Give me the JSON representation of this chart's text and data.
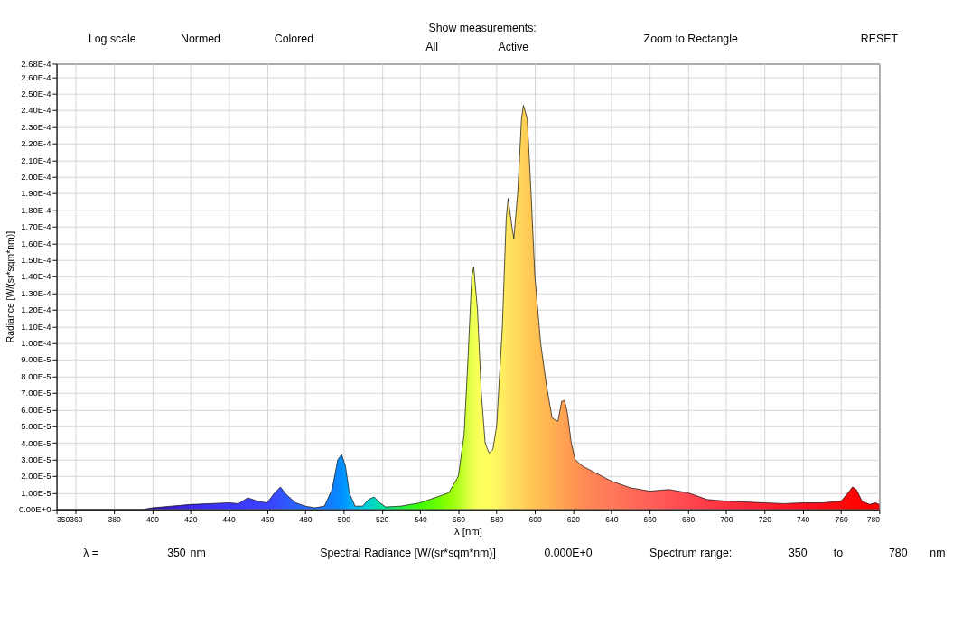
{
  "chart_data": {
    "type": "area",
    "xlabel": "λ [nm]",
    "ylabel": "Radiance [W/(sr*sqm*nm)]",
    "xlim": [
      350,
      780
    ],
    "xticks": [
      350,
      360,
      380,
      400,
      420,
      440,
      460,
      480,
      500,
      520,
      540,
      560,
      580,
      600,
      620,
      640,
      660,
      680,
      700,
      720,
      740,
      760,
      780
    ],
    "ylim": [
      0,
      0.000268
    ],
    "yticks": [
      {
        "value": 0,
        "label": "0.00E+0"
      },
      {
        "value": 1e-05,
        "label": "1.00E-5"
      },
      {
        "value": 2e-05,
        "label": "2.00E-5"
      },
      {
        "value": 3e-05,
        "label": "3.00E-5"
      },
      {
        "value": 4e-05,
        "label": "4.00E-5"
      },
      {
        "value": 5e-05,
        "label": "5.00E-5"
      },
      {
        "value": 6e-05,
        "label": "6.00E-5"
      },
      {
        "value": 7e-05,
        "label": "7.00E-5"
      },
      {
        "value": 8e-05,
        "label": "8.00E-5"
      },
      {
        "value": 9e-05,
        "label": "9.00E-5"
      },
      {
        "value": 0.0001,
        "label": "1.00E-4"
      },
      {
        "value": 0.00011,
        "label": "1.10E-4"
      },
      {
        "value": 0.00012,
        "label": "1.20E-4"
      },
      {
        "value": 0.00013,
        "label": "1.30E-4"
      },
      {
        "value": 0.00014,
        "label": "1.40E-4"
      },
      {
        "value": 0.00015,
        "label": "1.50E-4"
      },
      {
        "value": 0.00016,
        "label": "1.60E-4"
      },
      {
        "value": 0.00017,
        "label": "1.70E-4"
      },
      {
        "value": 0.00018,
        "label": "1.80E-4"
      },
      {
        "value": 0.00019,
        "label": "1.90E-4"
      },
      {
        "value": 0.0002,
        "label": "2.00E-4"
      },
      {
        "value": 0.00021,
        "label": "2.10E-4"
      },
      {
        "value": 0.00022,
        "label": "2.20E-4"
      },
      {
        "value": 0.00023,
        "label": "2.30E-4"
      },
      {
        "value": 0.00024,
        "label": "2.40E-4"
      },
      {
        "value": 0.00025,
        "label": "2.50E-4"
      },
      {
        "value": 0.00026,
        "label": "2.60E-4"
      },
      {
        "value": 0.000268,
        "label": "2.68E-4"
      }
    ],
    "grid": true,
    "series": [
      {
        "x": [
          350,
          395,
          400,
          410,
          420,
          430,
          440,
          445,
          450,
          455,
          460,
          464,
          467,
          470,
          475,
          480,
          485,
          490,
          494,
          497,
          499,
          501,
          503,
          506,
          510,
          513,
          516,
          519,
          522,
          530,
          540,
          550,
          555,
          560,
          563,
          565,
          567,
          568,
          570,
          572,
          574,
          576,
          578,
          580,
          583,
          585,
          586,
          588,
          589,
          591,
          593,
          594,
          596,
          598,
          600,
          603,
          606,
          609,
          612,
          614,
          615.5,
          617,
          619,
          621,
          625,
          630,
          640,
          650,
          660,
          670,
          680,
          690,
          700,
          710,
          720,
          730,
          740,
          750,
          760,
          763,
          766,
          768,
          771,
          775,
          778,
          780
        ],
        "values": [
          0,
          0,
          1e-06,
          2e-06,
          3e-06,
          3.5e-06,
          4e-06,
          3.5e-06,
          7e-06,
          5e-06,
          4e-06,
          1e-05,
          1.35e-05,
          9e-06,
          4e-06,
          2e-06,
          1e-06,
          2e-06,
          1.2e-05,
          3e-05,
          3.3e-05,
          2.6e-05,
          1e-05,
          2e-06,
          2e-06,
          6e-06,
          7.5e-06,
          4e-06,
          1.5e-06,
          2e-06,
          4e-06,
          8e-06,
          1e-05,
          2e-05,
          4.5e-05,
          9e-05,
          0.00014,
          0.000146,
          0.00012,
          7e-05,
          4e-05,
          3.4e-05,
          3.6e-05,
          5e-05,
          0.00011,
          0.000175,
          0.000187,
          0.00017,
          0.000163,
          0.00019,
          0.000235,
          0.000243,
          0.000235,
          0.00019,
          0.00014,
          0.0001,
          7.5e-05,
          5.5e-05,
          5.3e-05,
          6.5e-05,
          6.55e-05,
          5.8e-05,
          4e-05,
          3e-05,
          2.6e-05,
          2.3e-05,
          1.7e-05,
          1.3e-05,
          1.1e-05,
          1.2e-05,
          1e-05,
          6e-06,
          5e-06,
          4.5e-06,
          4e-06,
          3.5e-06,
          4e-06,
          4e-06,
          5e-06,
          9e-06,
          1.35e-05,
          1.2e-05,
          5e-06,
          3e-06,
          4e-06,
          3e-06
        ],
        "colors": [
          "#1a0a40",
          "#2a1480",
          "#3018b0",
          "#3a20d0",
          "#3c28e0",
          "#3c30f0",
          "#3c38ff",
          "#3c38ff",
          "#3c3cff",
          "#3c40ff",
          "#3c44ff",
          "#3848ff",
          "#3450ff",
          "#3058ff",
          "#2c60ff",
          "#2868ff",
          "#2070ff",
          "#1878ff",
          "#1080ff",
          "#0888ff",
          "#0090ff",
          "#0098ff",
          "#00a8f8",
          "#00b8f0",
          "#00c8e0",
          "#00d0d0",
          "#00d8c0",
          "#00e0a8",
          "#00e890",
          "#20f040",
          "#40ff00",
          "#70ff00",
          "#90ff00",
          "#b0ff20",
          "#c8ff30",
          "#d8ff40",
          "#e8ff50",
          "#f0ff50",
          "#f8ff58",
          "#ffff60",
          "#ffff60",
          "#ffff60",
          "#fffa60",
          "#fff560",
          "#ffee60",
          "#ffe860",
          "#ffe460",
          "#ffe060",
          "#ffdc5e",
          "#ffd85c",
          "#ffd45a",
          "#ffd058",
          "#ffcc56",
          "#ffc854",
          "#ffc252",
          "#ffbc52",
          "#ffb652",
          "#ffb052",
          "#ffa852",
          "#ffa452",
          "#ffa052",
          "#ff9c52",
          "#ff9852",
          "#ff9452",
          "#ff8c55",
          "#ff8458",
          "#ff7858",
          "#ff6c58",
          "#ff6058",
          "#ff5454",
          "#ff4850",
          "#ff3c48",
          "#ff3040",
          "#ff2838",
          "#ff2030",
          "#ff1828",
          "#ff1020",
          "#ff0c18",
          "#ff0810",
          "#ff0808",
          "#ff0404",
          "#ff0404",
          "#ff0202",
          "#ff0000",
          "#ff0000",
          "#ff0000"
        ]
      }
    ],
    "annotations": [
      "Log scale",
      "Normed",
      "Colored",
      "Show measurements:",
      "All",
      "Active",
      "Zoom to Rectangle",
      "RESET",
      "λ =",
      "350",
      "nm",
      "Spectral Radiance [W/(sr*sqm*nm)]",
      "0.000E+0",
      "Spectrum range:",
      "350",
      "to",
      "780",
      "nm"
    ]
  }
}
